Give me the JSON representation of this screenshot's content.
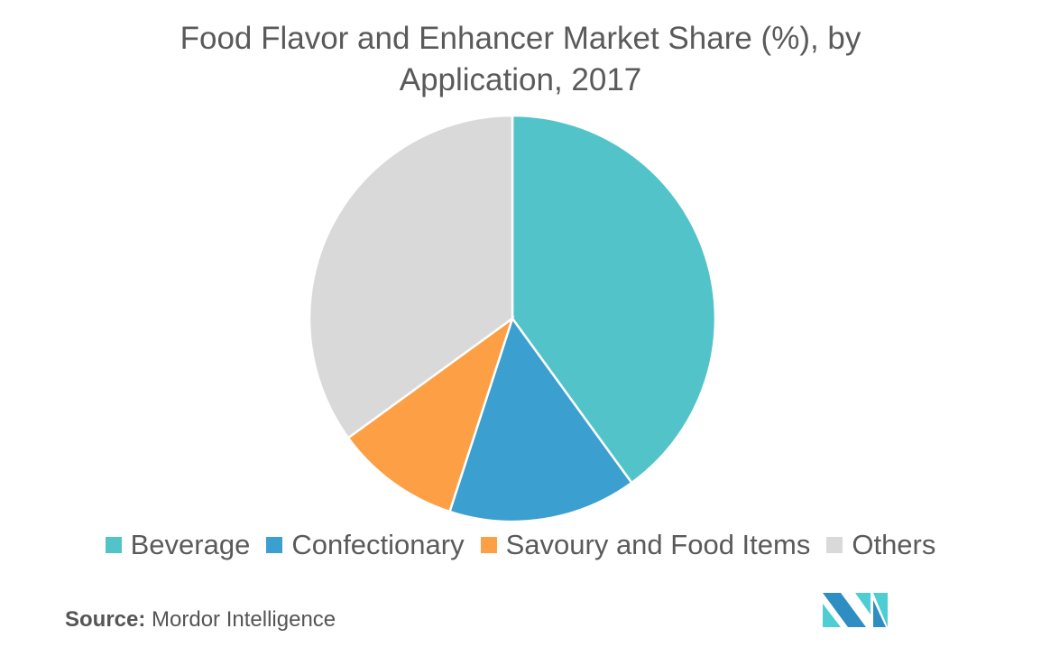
{
  "chart_data": {
    "type": "pie",
    "title": "Food Flavor and Enhancer Market Share (%), by Application, 2017",
    "title_lines": [
      "Food Flavor and Enhancer Market Share (%), by",
      "Application, 2017"
    ],
    "categories": [
      "Beverage",
      "Confectionary",
      "Savoury and Food Items",
      "Others"
    ],
    "values": [
      40,
      15,
      10,
      35
    ],
    "colors": [
      "#52c4c9",
      "#3b9fd0",
      "#fd9f45",
      "#d9d9d9"
    ],
    "legend_position": "bottom",
    "start_angle": "top, clockwise"
  },
  "source": {
    "label": "Source:",
    "text": "Mordor Intelligence"
  },
  "logo": {
    "text": "Mordor Intelligence logo",
    "colors": [
      "#2e8ec2",
      "#4ecdd2"
    ]
  }
}
